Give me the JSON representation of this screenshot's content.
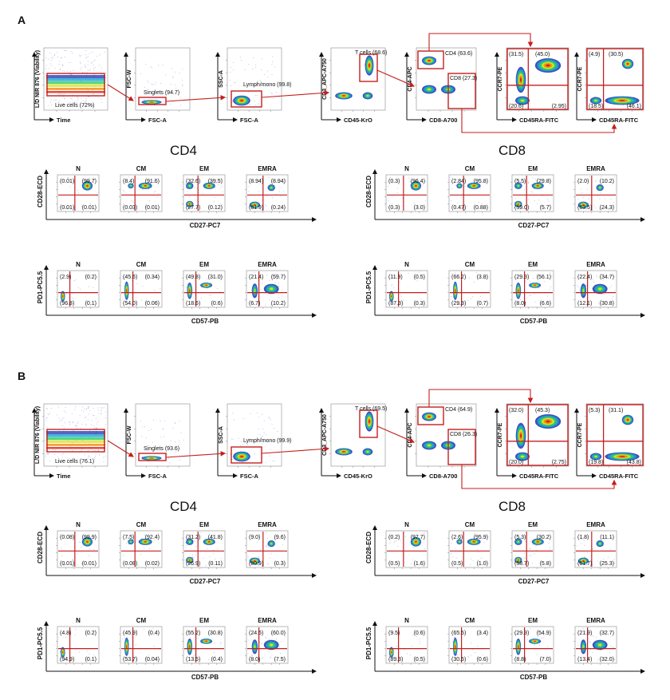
{
  "figure": {
    "panels": [
      {
        "id": "A",
        "gating": [
          {
            "x_axis": "Time",
            "y_axis": "L/D NIR 876 (Viability)",
            "gate": "Live cells (72%)"
          },
          {
            "x_axis": "FSC-A",
            "y_axis": "FSC-W",
            "gate": "Singlets (94.7)"
          },
          {
            "x_axis": "FSC-A",
            "y_axis": "SSC-A",
            "gate": "Lymph/mono (99.8)"
          },
          {
            "x_axis": "CD45-KrO",
            "y_axis": "CD3_APC-A750",
            "gate": "T cells (68.6)"
          },
          {
            "x_axis": "CD8-A700",
            "y_axis": "CD4-APC",
            "gate": "CD4 (63.6)",
            "gate2": "CD8 (27.3)"
          },
          {
            "x_axis": "CD45RA-FITC",
            "y_axis": "CCR7-PE",
            "q": [
              "(31.5)",
              "(45.0)",
              "(20.6)",
              "(2.95)"
            ]
          },
          {
            "x_axis": "CD45RA-FITC",
            "y_axis": "CCR7-PE",
            "q": [
              "(4.9)",
              "(30.5)",
              "(18.5)",
              "(46.1)"
            ]
          }
        ],
        "groups": [
          {
            "title": "CD4",
            "rows": [
              {
                "y_axis": "CD28-ECD",
                "x_axis": "CD27-PC7",
                "plots": [
                  {
                    "label": "N",
                    "q": [
                      "(0.01)",
                      "(99.7)",
                      "(0.01)",
                      "(0.01)"
                    ]
                  },
                  {
                    "label": "CM",
                    "q": [
                      "(8.4)",
                      "(91.6)",
                      "(0.03)",
                      "(0.01)"
                    ]
                  },
                  {
                    "label": "EM",
                    "q": [
                      "(32.6)",
                      "(39.5)",
                      "(27.7)",
                      "(0.12)"
                    ]
                  },
                  {
                    "label": "EMRA",
                    "q": [
                      "(8.94)",
                      "(8.94)",
                      "(81.9)",
                      "(0.24)"
                    ]
                  }
                ]
              },
              {
                "y_axis": "PD1-PC5.5",
                "x_axis": "CD57-PB",
                "plots": [
                  {
                    "label": "N",
                    "q": [
                      "(2.9)",
                      "(0.2)",
                      "(96.8)",
                      "(0.1)"
                    ]
                  },
                  {
                    "label": "CM",
                    "q": [
                      "(45.6)",
                      "(0.34)",
                      "(54.0)",
                      "(0.06)"
                    ]
                  },
                  {
                    "label": "EM",
                    "q": [
                      "(49.8)",
                      "(31.0)",
                      "(18.6)",
                      "(0.6)"
                    ]
                  },
                  {
                    "label": "EMRA",
                    "q": [
                      "(21.4)",
                      "(59.7)",
                      "(6.7)",
                      "(10.2)"
                    ]
                  }
                ]
              }
            ]
          },
          {
            "title": "CD8",
            "rows": [
              {
                "y_axis": "CD28-ECD",
                "x_axis": "CD27-PC7",
                "plots": [
                  {
                    "label": "N",
                    "q": [
                      "(0.3)",
                      "(96.4)",
                      "(0.3)",
                      "(3.0)"
                    ]
                  },
                  {
                    "label": "CM",
                    "q": [
                      "(2.84)",
                      "(95.8)",
                      "(0.47)",
                      "(0.88)"
                    ]
                  },
                  {
                    "label": "EM",
                    "q": [
                      "(5.5)",
                      "(29.8)",
                      "(59.0)",
                      "(5.7)"
                    ]
                  },
                  {
                    "label": "EMRA",
                    "q": [
                      "(2.0)",
                      "(10.2)",
                      "(63.5)",
                      "(24.3)"
                    ]
                  }
                ]
              },
              {
                "y_axis": "PD1-PC5.5",
                "x_axis": "CD57-PB",
                "plots": [
                  {
                    "label": "N",
                    "q": [
                      "(11.9)",
                      "(0.5)",
                      "(87.3)",
                      "(0.3)"
                    ]
                  },
                  {
                    "label": "CM",
                    "q": [
                      "(66.2)",
                      "(3.8)",
                      "(29.3)",
                      "(0.7)"
                    ]
                  },
                  {
                    "label": "EM",
                    "q": [
                      "(29.3)",
                      "(56.1)",
                      "(8.0)",
                      "(6.6)"
                    ]
                  },
                  {
                    "label": "EMRA",
                    "q": [
                      "(22.4)",
                      "(34.7)",
                      "(12.1)",
                      "(30.8)"
                    ]
                  }
                ]
              }
            ]
          }
        ]
      },
      {
        "id": "B",
        "gating": [
          {
            "x_axis": "Time",
            "y_axis": "L/D NIR 876 (Viability)",
            "gate": "Live cells (76.1)"
          },
          {
            "x_axis": "FSC-A",
            "y_axis": "FSC-W",
            "gate": "Singlets (93.6)"
          },
          {
            "x_axis": "FSC-A",
            "y_axis": "SSC-A",
            "gate": "Lymph/mono (99.9)"
          },
          {
            "x_axis": "CD45-KrO",
            "y_axis": "CD3_APC-A750",
            "gate": "T cells (69.5)"
          },
          {
            "x_axis": "CD8-A700",
            "y_axis": "CD4-APC",
            "gate": "CD4 (64.9)",
            "gate2": "CD8 (26.3)"
          },
          {
            "x_axis": "CD45RA-FITC",
            "y_axis": "CCR7-PE",
            "q": [
              "(32.0)",
              "(45.3)",
              "(20.0)",
              "(2.75)"
            ]
          },
          {
            "x_axis": "CD45RA-FITC",
            "y_axis": "CCR7-PE",
            "q": [
              "(5.3)",
              "(31.1)",
              "(19.8)",
              "(43.8)"
            ]
          }
        ],
        "groups": [
          {
            "title": "CD4",
            "rows": [
              {
                "y_axis": "CD28-ECD",
                "x_axis": "CD27-PC7",
                "plots": [
                  {
                    "label": "N",
                    "q": [
                      "(0.08)",
                      "(99.9)",
                      "(0.01)",
                      "(0.01)"
                    ]
                  },
                  {
                    "label": "CM",
                    "q": [
                      "(7.5)",
                      "(92.4)",
                      "(0.08)",
                      "(0.02)"
                    ]
                  },
                  {
                    "label": "EM",
                    "q": [
                      "(31.2)",
                      "(41.8)",
                      "(26.9)",
                      "(0.11)"
                    ]
                  },
                  {
                    "label": "EMRA",
                    "q": [
                      "(9.0)",
                      "(9.6)",
                      "(80.9)",
                      "(0.3)"
                    ]
                  }
                ]
              },
              {
                "y_axis": "PD1-PC5.5",
                "x_axis": "CD57-PB",
                "plots": [
                  {
                    "label": "N",
                    "q": [
                      "(4.8)",
                      "(0.2)",
                      "(94.9)",
                      "(0.1)"
                    ]
                  },
                  {
                    "label": "CM",
                    "q": [
                      "(45.9)",
                      "(0.4)",
                      "(53.7)",
                      "(0.04)"
                    ]
                  },
                  {
                    "label": "EM",
                    "q": [
                      "(55.2)",
                      "(30.8)",
                      "(13.5)",
                      "(0.4)"
                    ]
                  },
                  {
                    "label": "EMRA",
                    "q": [
                      "(24.5)",
                      "(60.0)",
                      "(8.0)",
                      "(7.5)"
                    ]
                  }
                ]
              }
            ]
          },
          {
            "title": "CD8",
            "rows": [
              {
                "y_axis": "CD28-ECD",
                "x_axis": "CD27-PC7",
                "plots": [
                  {
                    "label": "N",
                    "q": [
                      "(0.2)",
                      "(97.7)",
                      "(0.5)",
                      "(1.6)"
                    ]
                  },
                  {
                    "label": "CM",
                    "q": [
                      "(2.6)",
                      "(95.9)",
                      "(0.5)",
                      "(1.0)"
                    ]
                  },
                  {
                    "label": "EM",
                    "q": [
                      "(5.3)",
                      "(30.2)",
                      "(58.7)",
                      "(5.8)"
                    ]
                  },
                  {
                    "label": "EMRA",
                    "q": [
                      "(1.8)",
                      "(11.1)",
                      "(61.7)",
                      "(25.3)"
                    ]
                  }
                ]
              },
              {
                "y_axis": "PD1-PC5.5",
                "x_axis": "CD57-PB",
                "plots": [
                  {
                    "label": "N",
                    "q": [
                      "(9.5)",
                      "(0.6)",
                      "(89.3)",
                      "(0.5)"
                    ]
                  },
                  {
                    "label": "CM",
                    "q": [
                      "(65.5)",
                      "(3.4)",
                      "(30.5)",
                      "(0.6)"
                    ]
                  },
                  {
                    "label": "EM",
                    "q": [
                      "(29.3)",
                      "(54.9)",
                      "(8.8)",
                      "(7.0)"
                    ]
                  },
                  {
                    "label": "EMRA",
                    "q": [
                      "(21.9)",
                      "(32.7)",
                      "(13.4)",
                      "(32.0)"
                    ]
                  }
                ]
              }
            ]
          }
        ]
      }
    ]
  },
  "colors": {
    "gate": "#c41e1e",
    "axis": "#111111",
    "frame": "#9a9a9a",
    "dots": "#2a3fb0",
    "density": [
      "#2a3fb0",
      "#19a2d8",
      "#2ecf5a",
      "#e8e020",
      "#f08a14",
      "#d81e12"
    ]
  }
}
